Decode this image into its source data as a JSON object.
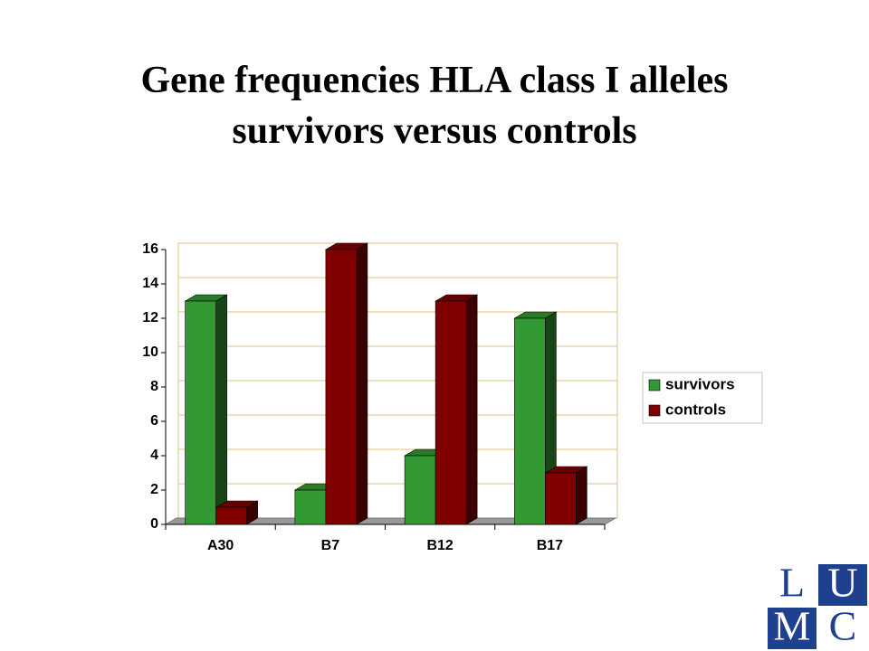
{
  "chart_data": {
    "type": "bar3d",
    "title": [
      "Gene frequencies HLA class I alleles",
      "survivors versus controls"
    ],
    "categories": [
      "A30",
      "B7",
      "B12",
      "B17"
    ],
    "series": [
      {
        "name": "survivors",
        "color": "#339933",
        "values": [
          13,
          2,
          4,
          12
        ]
      },
      {
        "name": "controls",
        "color": "#800000",
        "values": [
          1,
          16,
          13,
          3
        ]
      }
    ],
    "ylim": [
      0,
      16
    ],
    "yticks": [
      0,
      2,
      4,
      6,
      8,
      10,
      12,
      14,
      16
    ],
    "grid": true,
    "legend": "right"
  },
  "logo": {
    "letters": [
      "L",
      "U",
      "M",
      "C"
    ]
  }
}
